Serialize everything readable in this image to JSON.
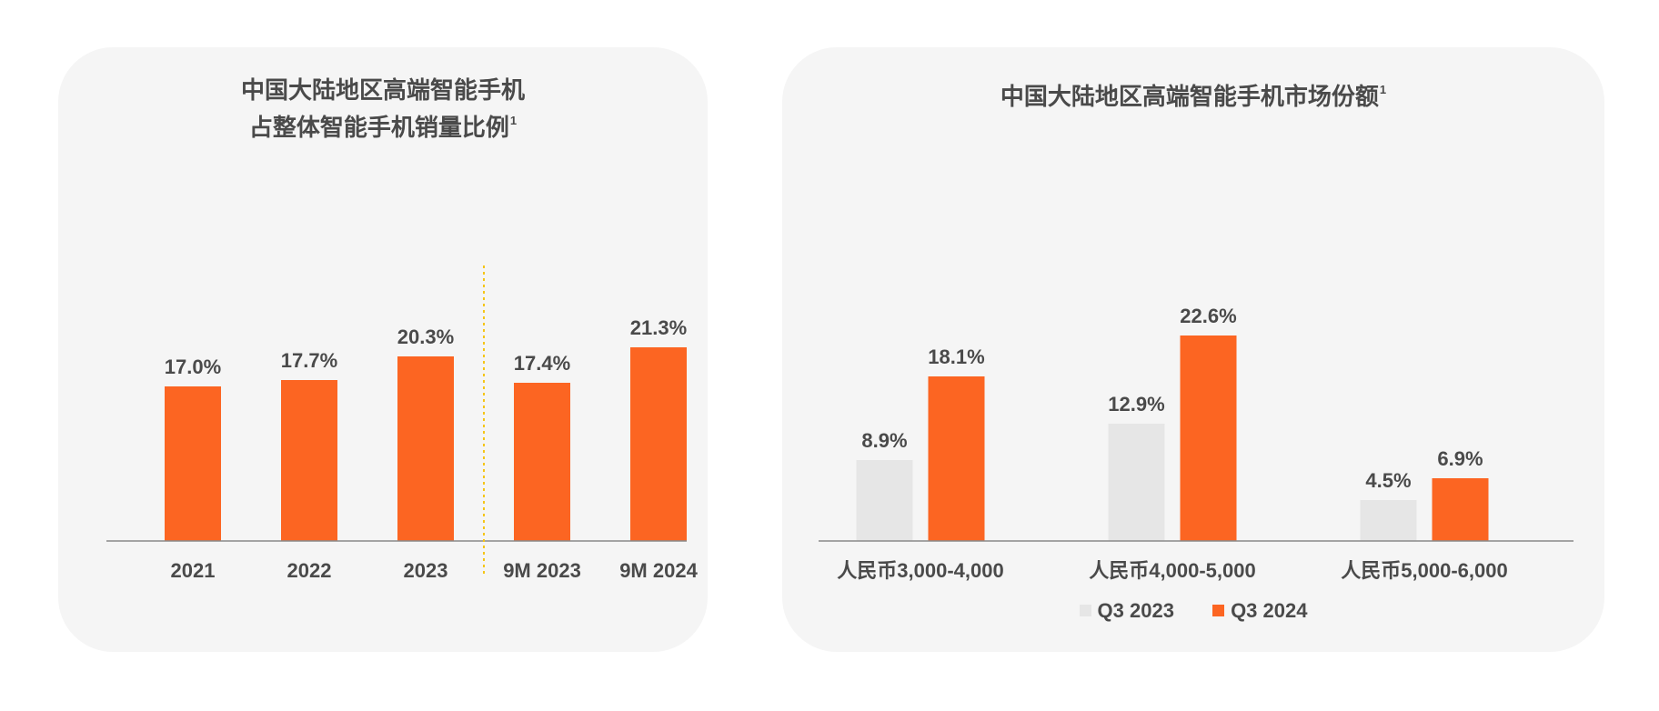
{
  "colors": {
    "highlight": "#fc6522",
    "prior": "#e6e6e6",
    "divider": "#f5c518"
  },
  "chart_data": [
    {
      "type": "bar",
      "title": "中国大陆地区高端智能手机占整体智能手机销量比例",
      "title_lines": [
        "中国大陆地区高端智能手机",
        "占整体智能手机销量比例"
      ],
      "footnote": "1",
      "categories": [
        "2021",
        "2022",
        "2023",
        "9M 2023",
        "9M 2024"
      ],
      "values": [
        17.0,
        17.7,
        20.3,
        17.4,
        21.3
      ],
      "labels": [
        "17.0%",
        "17.7%",
        "20.3%",
        "17.4%",
        "21.3%"
      ],
      "divider_after_index": 2,
      "ylim": [
        0,
        30
      ],
      "grid": false
    },
    {
      "type": "bar",
      "title": "中国大陆地区高端智能手机市场份额",
      "footnote": "1",
      "categories": [
        "人民币3,000-4,000",
        "人民币4,000-5,000",
        "人民币5,000-6,000"
      ],
      "series": [
        {
          "name": "Q3 2023",
          "values": [
            8.9,
            12.9,
            4.5
          ],
          "labels": [
            "8.9%",
            "12.9%",
            "4.5%"
          ]
        },
        {
          "name": "Q3 2024",
          "values": [
            18.1,
            22.6,
            6.9
          ],
          "labels": [
            "18.1%",
            "22.6%",
            "6.9%"
          ]
        }
      ],
      "legend": "bottom",
      "ylim": [
        0,
        30
      ],
      "grid": false
    }
  ]
}
